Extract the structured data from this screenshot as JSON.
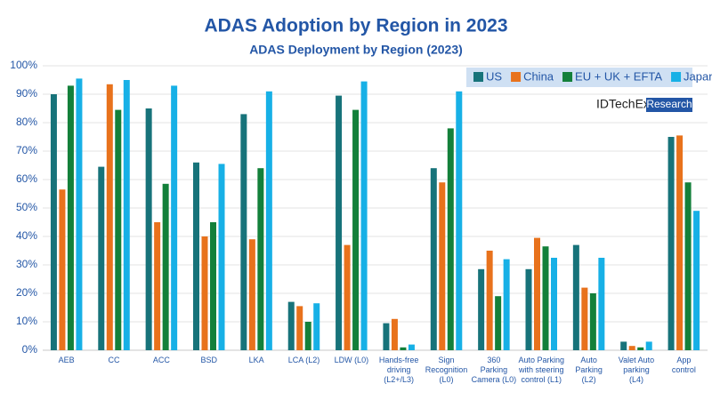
{
  "chart_data": {
    "type": "bar",
    "title": "ADAS Adoption by Region in 2023",
    "subtitle": "ADAS Deployment by Region (2023)",
    "logo": {
      "name": "IDTechEx",
      "tag": "Research"
    },
    "categories": [
      [
        "AEB"
      ],
      [
        "CC"
      ],
      [
        "ACC"
      ],
      [
        "BSD"
      ],
      [
        "LKA"
      ],
      [
        "LCA (L2)"
      ],
      [
        "LDW (L0)"
      ],
      [
        "Hands-free",
        "driving",
        "(L2+/L3)"
      ],
      [
        "Sign",
        "Recognition",
        "(L0)"
      ],
      [
        "360",
        "Parking",
        "Camera (L0)"
      ],
      [
        "Auto Parking",
        "with steering",
        "control (L1)"
      ],
      [
        "Auto",
        "Parking",
        "(L2)"
      ],
      [
        "Valet Auto",
        "parking",
        "(L4)"
      ],
      [
        "App",
        "control"
      ]
    ],
    "series": [
      {
        "name": "US",
        "color": "#17737a",
        "values": [
          90,
          64.5,
          85,
          66,
          83,
          17,
          89.5,
          9.5,
          64,
          28.5,
          28.5,
          37,
          3,
          75
        ]
      },
      {
        "name": "China",
        "color": "#e8721c",
        "values": [
          56.5,
          93.5,
          45,
          40,
          39,
          15.5,
          37,
          11,
          59,
          35,
          39.5,
          22,
          1.5,
          75.5
        ]
      },
      {
        "name": "EU + UK + EFTA",
        "color": "#13803a",
        "values": [
          93,
          84.5,
          58.5,
          45,
          64,
          10,
          84.5,
          1,
          78,
          19,
          36.5,
          20,
          1,
          59
        ]
      },
      {
        "name": "Japan",
        "color": "#17b0e6",
        "values": [
          95.5,
          95,
          93,
          65.5,
          91,
          16.5,
          94.5,
          2,
          91,
          32,
          32.5,
          32.5,
          3,
          49
        ]
      }
    ],
    "ylim": [
      0,
      100
    ],
    "yticks": [
      {
        "value": 0,
        "label": "0%"
      },
      {
        "value": 10,
        "label": "10%"
      },
      {
        "value": 20,
        "label": "20%"
      },
      {
        "value": 30,
        "label": "30%"
      },
      {
        "value": 40,
        "label": "40%"
      },
      {
        "value": 50,
        "label": "50%"
      },
      {
        "value": 60,
        "label": "60%"
      },
      {
        "value": 70,
        "label": "70%"
      },
      {
        "value": 80,
        "label": "80%"
      },
      {
        "value": 90,
        "label": "90%"
      },
      {
        "value": 100,
        "label": "100%"
      }
    ],
    "grid": true,
    "legend": "top-right"
  }
}
